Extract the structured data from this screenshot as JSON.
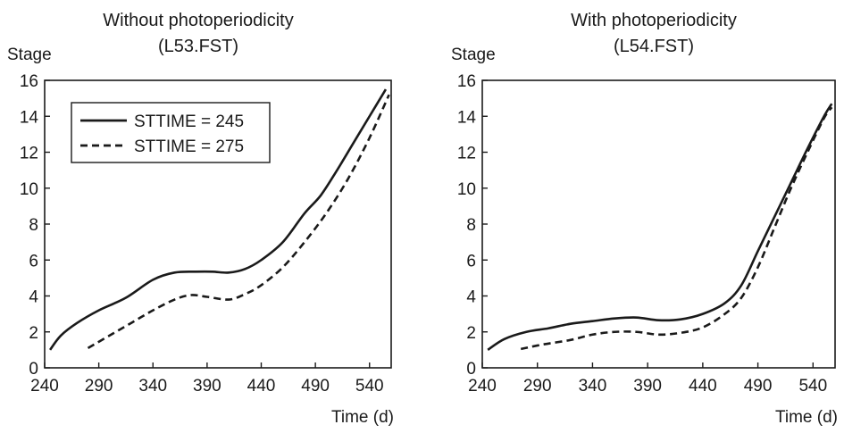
{
  "chart_data": [
    {
      "type": "line",
      "title": "Without photoperiodicity",
      "subtitle": "(L53.FST)",
      "xlabel": "Time (d)",
      "ylabel": "Stage",
      "xlim": [
        240,
        560
      ],
      "ylim": [
        0,
        16
      ],
      "xticks": [
        240,
        290,
        340,
        390,
        440,
        490,
        540
      ],
      "yticks": [
        0,
        2,
        4,
        6,
        8,
        10,
        12,
        14,
        16
      ],
      "grid": false,
      "legend": "top-left",
      "series": [
        {
          "name": "STTIME = 245",
          "style": "solid",
          "color": "#1a1a1a",
          "points": [
            [
              245,
              1.0
            ],
            [
              255,
              1.8
            ],
            [
              270,
              2.5
            ],
            [
              290,
              3.2
            ],
            [
              315,
              3.9
            ],
            [
              340,
              4.9
            ],
            [
              360,
              5.3
            ],
            [
              380,
              5.35
            ],
            [
              395,
              5.35
            ],
            [
              410,
              5.3
            ],
            [
              425,
              5.5
            ],
            [
              440,
              6.0
            ],
            [
              460,
              7.0
            ],
            [
              480,
              8.6
            ],
            [
              495,
              9.6
            ],
            [
              510,
              11.0
            ],
            [
              525,
              12.5
            ],
            [
              540,
              14.0
            ],
            [
              555,
              15.5
            ]
          ]
        },
        {
          "name": "STTIME = 275",
          "style": "dashed",
          "color": "#1a1a1a",
          "points": [
            [
              280,
              1.1
            ],
            [
              300,
              1.8
            ],
            [
              320,
              2.5
            ],
            [
              340,
              3.2
            ],
            [
              360,
              3.8
            ],
            [
              375,
              4.05
            ],
            [
              390,
              3.95
            ],
            [
              410,
              3.8
            ],
            [
              425,
              4.1
            ],
            [
              440,
              4.6
            ],
            [
              460,
              5.6
            ],
            [
              480,
              7.0
            ],
            [
              500,
              8.6
            ],
            [
              520,
              10.5
            ],
            [
              540,
              12.8
            ],
            [
              558,
              15.2
            ]
          ]
        }
      ]
    },
    {
      "type": "line",
      "title": "With photoperiodicity",
      "subtitle": "(L54.FST)",
      "xlabel": "Time (d)",
      "ylabel": "Stage",
      "xlim": [
        240,
        560
      ],
      "ylim": [
        0,
        16
      ],
      "xticks": [
        240,
        290,
        340,
        390,
        440,
        490,
        540
      ],
      "yticks": [
        0,
        2,
        4,
        6,
        8,
        10,
        12,
        14,
        16
      ],
      "grid": false,
      "legend": "none",
      "series": [
        {
          "name": "STTIME = 245",
          "style": "solid",
          "color": "#1a1a1a",
          "points": [
            [
              245,
              1.0
            ],
            [
              260,
              1.6
            ],
            [
              280,
              2.0
            ],
            [
              300,
              2.2
            ],
            [
              320,
              2.45
            ],
            [
              340,
              2.6
            ],
            [
              360,
              2.75
            ],
            [
              380,
              2.8
            ],
            [
              400,
              2.65
            ],
            [
              420,
              2.7
            ],
            [
              440,
              3.0
            ],
            [
              460,
              3.6
            ],
            [
              475,
              4.6
            ],
            [
              490,
              6.5
            ],
            [
              505,
              8.4
            ],
            [
              520,
              10.3
            ],
            [
              535,
              12.2
            ],
            [
              550,
              14.0
            ],
            [
              557,
              14.7
            ]
          ]
        },
        {
          "name": "STTIME = 275",
          "style": "dashed",
          "color": "#1a1a1a",
          "points": [
            [
              275,
              1.05
            ],
            [
              295,
              1.3
            ],
            [
              320,
              1.55
            ],
            [
              340,
              1.85
            ],
            [
              360,
              2.0
            ],
            [
              380,
              2.0
            ],
            [
              400,
              1.85
            ],
            [
              420,
              1.95
            ],
            [
              440,
              2.25
            ],
            [
              460,
              3.0
            ],
            [
              475,
              3.9
            ],
            [
              490,
              5.6
            ],
            [
              505,
              7.8
            ],
            [
              520,
              10.0
            ],
            [
              535,
              12.0
            ],
            [
              550,
              13.9
            ],
            [
              557,
              14.5
            ]
          ]
        }
      ]
    }
  ]
}
